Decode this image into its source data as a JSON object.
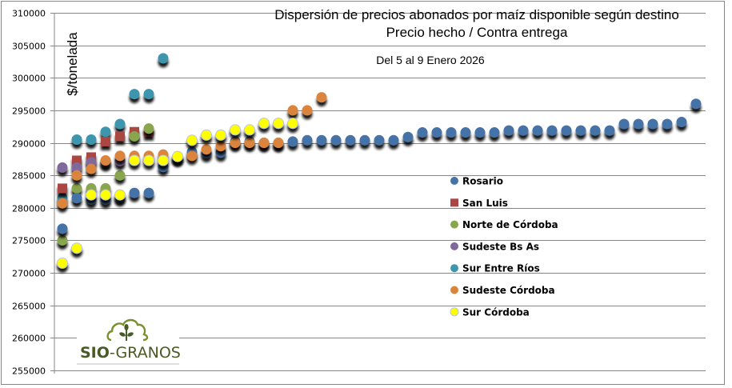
{
  "chart_data": {
    "type": "scatter",
    "title": "Dispersión de precios abonados por maíz disponible según destino",
    "subtitle": "Precio hecho / Contra entrega",
    "period": "Del 5 al 9 Enero 2026",
    "xlabel": "",
    "ylabel": "$/tonelada",
    "ylim": [
      255000,
      310000
    ],
    "yticks": [
      255000,
      260000,
      265000,
      270000,
      275000,
      280000,
      285000,
      290000,
      295000,
      300000,
      305000,
      310000
    ],
    "ytick_labels": [
      "255000",
      "260000",
      "265000",
      "270000",
      "275000",
      "280000",
      "285000",
      "290000",
      "295000",
      "300000",
      "305000",
      "310000"
    ],
    "xlim": [
      1,
      45
    ],
    "grid": true,
    "legend_position": "center-right",
    "series": [
      {
        "name": "Rosario",
        "color": "#4572a7",
        "marker": "circle",
        "points": [
          [
            1,
            276800
          ],
          [
            2,
            281500
          ],
          [
            3,
            281300
          ],
          [
            4,
            281300
          ],
          [
            5,
            281600
          ],
          [
            6,
            282300
          ],
          [
            7,
            282300
          ],
          [
            8,
            286300
          ],
          [
            9,
            287700
          ],
          [
            10,
            288600
          ],
          [
            11,
            288400
          ],
          [
            12,
            288500
          ],
          [
            13,
            290200
          ],
          [
            14,
            290200
          ],
          [
            15,
            290000
          ],
          [
            16,
            290000
          ],
          [
            17,
            290200
          ],
          [
            18,
            290400
          ],
          [
            19,
            290400
          ],
          [
            20,
            290400
          ],
          [
            21,
            290400
          ],
          [
            22,
            290400
          ],
          [
            23,
            290400
          ],
          [
            24,
            290400
          ],
          [
            25,
            290900
          ],
          [
            26,
            291600
          ],
          [
            27,
            291600
          ],
          [
            28,
            291600
          ],
          [
            29,
            291600
          ],
          [
            30,
            291600
          ],
          [
            31,
            291600
          ],
          [
            32,
            291900
          ],
          [
            33,
            291900
          ],
          [
            34,
            291900
          ],
          [
            35,
            291900
          ],
          [
            36,
            291900
          ],
          [
            37,
            291900
          ],
          [
            38,
            291900
          ],
          [
            39,
            291900
          ],
          [
            40,
            292900
          ],
          [
            41,
            292900
          ],
          [
            42,
            292900
          ],
          [
            43,
            292900
          ],
          [
            44,
            293200
          ],
          [
            45,
            296000
          ]
        ]
      },
      {
        "name": "San Luis",
        "color": "#aa4643",
        "marker": "square",
        "points": [
          [
            1,
            283000
          ],
          [
            2,
            287300
          ],
          [
            3,
            287800
          ],
          [
            4,
            290200
          ],
          [
            5,
            291000
          ],
          [
            6,
            291700
          ],
          [
            7,
            291700
          ]
        ]
      },
      {
        "name": "Norte de Córdoba",
        "color": "#89a54e",
        "marker": "circle",
        "points": [
          [
            1,
            275000
          ],
          [
            2,
            283000
          ],
          [
            3,
            283000
          ],
          [
            4,
            283000
          ],
          [
            5,
            285000
          ],
          [
            6,
            291000
          ],
          [
            7,
            292200
          ]
        ]
      },
      {
        "name": "Sudeste Bs As",
        "color": "#80699b",
        "marker": "circle",
        "points": [
          [
            1,
            286200
          ],
          [
            2,
            286200
          ],
          [
            3,
            287000
          ],
          [
            4,
            287000
          ],
          [
            5,
            287200
          ]
        ]
      },
      {
        "name": "Sur Entre Ríos",
        "color": "#3d96ae",
        "marker": "circle",
        "points": [
          [
            1,
            281500
          ],
          [
            2,
            290500
          ],
          [
            3,
            290500
          ],
          [
            4,
            291700
          ],
          [
            5,
            292900
          ],
          [
            6,
            297500
          ],
          [
            7,
            297500
          ],
          [
            8,
            303000
          ]
        ]
      },
      {
        "name": "Sudeste Córdoba",
        "color": "#db843d",
        "marker": "circle",
        "points": [
          [
            1,
            280700
          ],
          [
            2,
            285000
          ],
          [
            3,
            286000
          ],
          [
            4,
            287300
          ],
          [
            5,
            288000
          ],
          [
            6,
            288000
          ],
          [
            7,
            288000
          ],
          [
            8,
            288200
          ],
          [
            9,
            287900
          ],
          [
            10,
            288000
          ],
          [
            11,
            289000
          ],
          [
            12,
            289500
          ],
          [
            13,
            290000
          ],
          [
            14,
            290000
          ],
          [
            15,
            290000
          ],
          [
            16,
            290000
          ],
          [
            17,
            295000
          ],
          [
            18,
            295000
          ],
          [
            19,
            297000
          ]
        ]
      },
      {
        "name": "Sur Córdoba",
        "color": "#ffff00",
        "marker": "circle",
        "points": [
          [
            1,
            271500
          ],
          [
            2,
            273800
          ],
          [
            3,
            282000
          ],
          [
            4,
            282000
          ],
          [
            5,
            282000
          ],
          [
            6,
            287300
          ],
          [
            7,
            287300
          ],
          [
            8,
            287300
          ],
          [
            9,
            287900
          ],
          [
            10,
            290400
          ],
          [
            11,
            291200
          ],
          [
            12,
            291200
          ],
          [
            13,
            292000
          ],
          [
            14,
            292000
          ],
          [
            15,
            293000
          ],
          [
            16,
            293000
          ],
          [
            17,
            293000
          ]
        ]
      }
    ]
  },
  "logo": {
    "bold_text": "SIO",
    "text": "-GRANOS"
  }
}
